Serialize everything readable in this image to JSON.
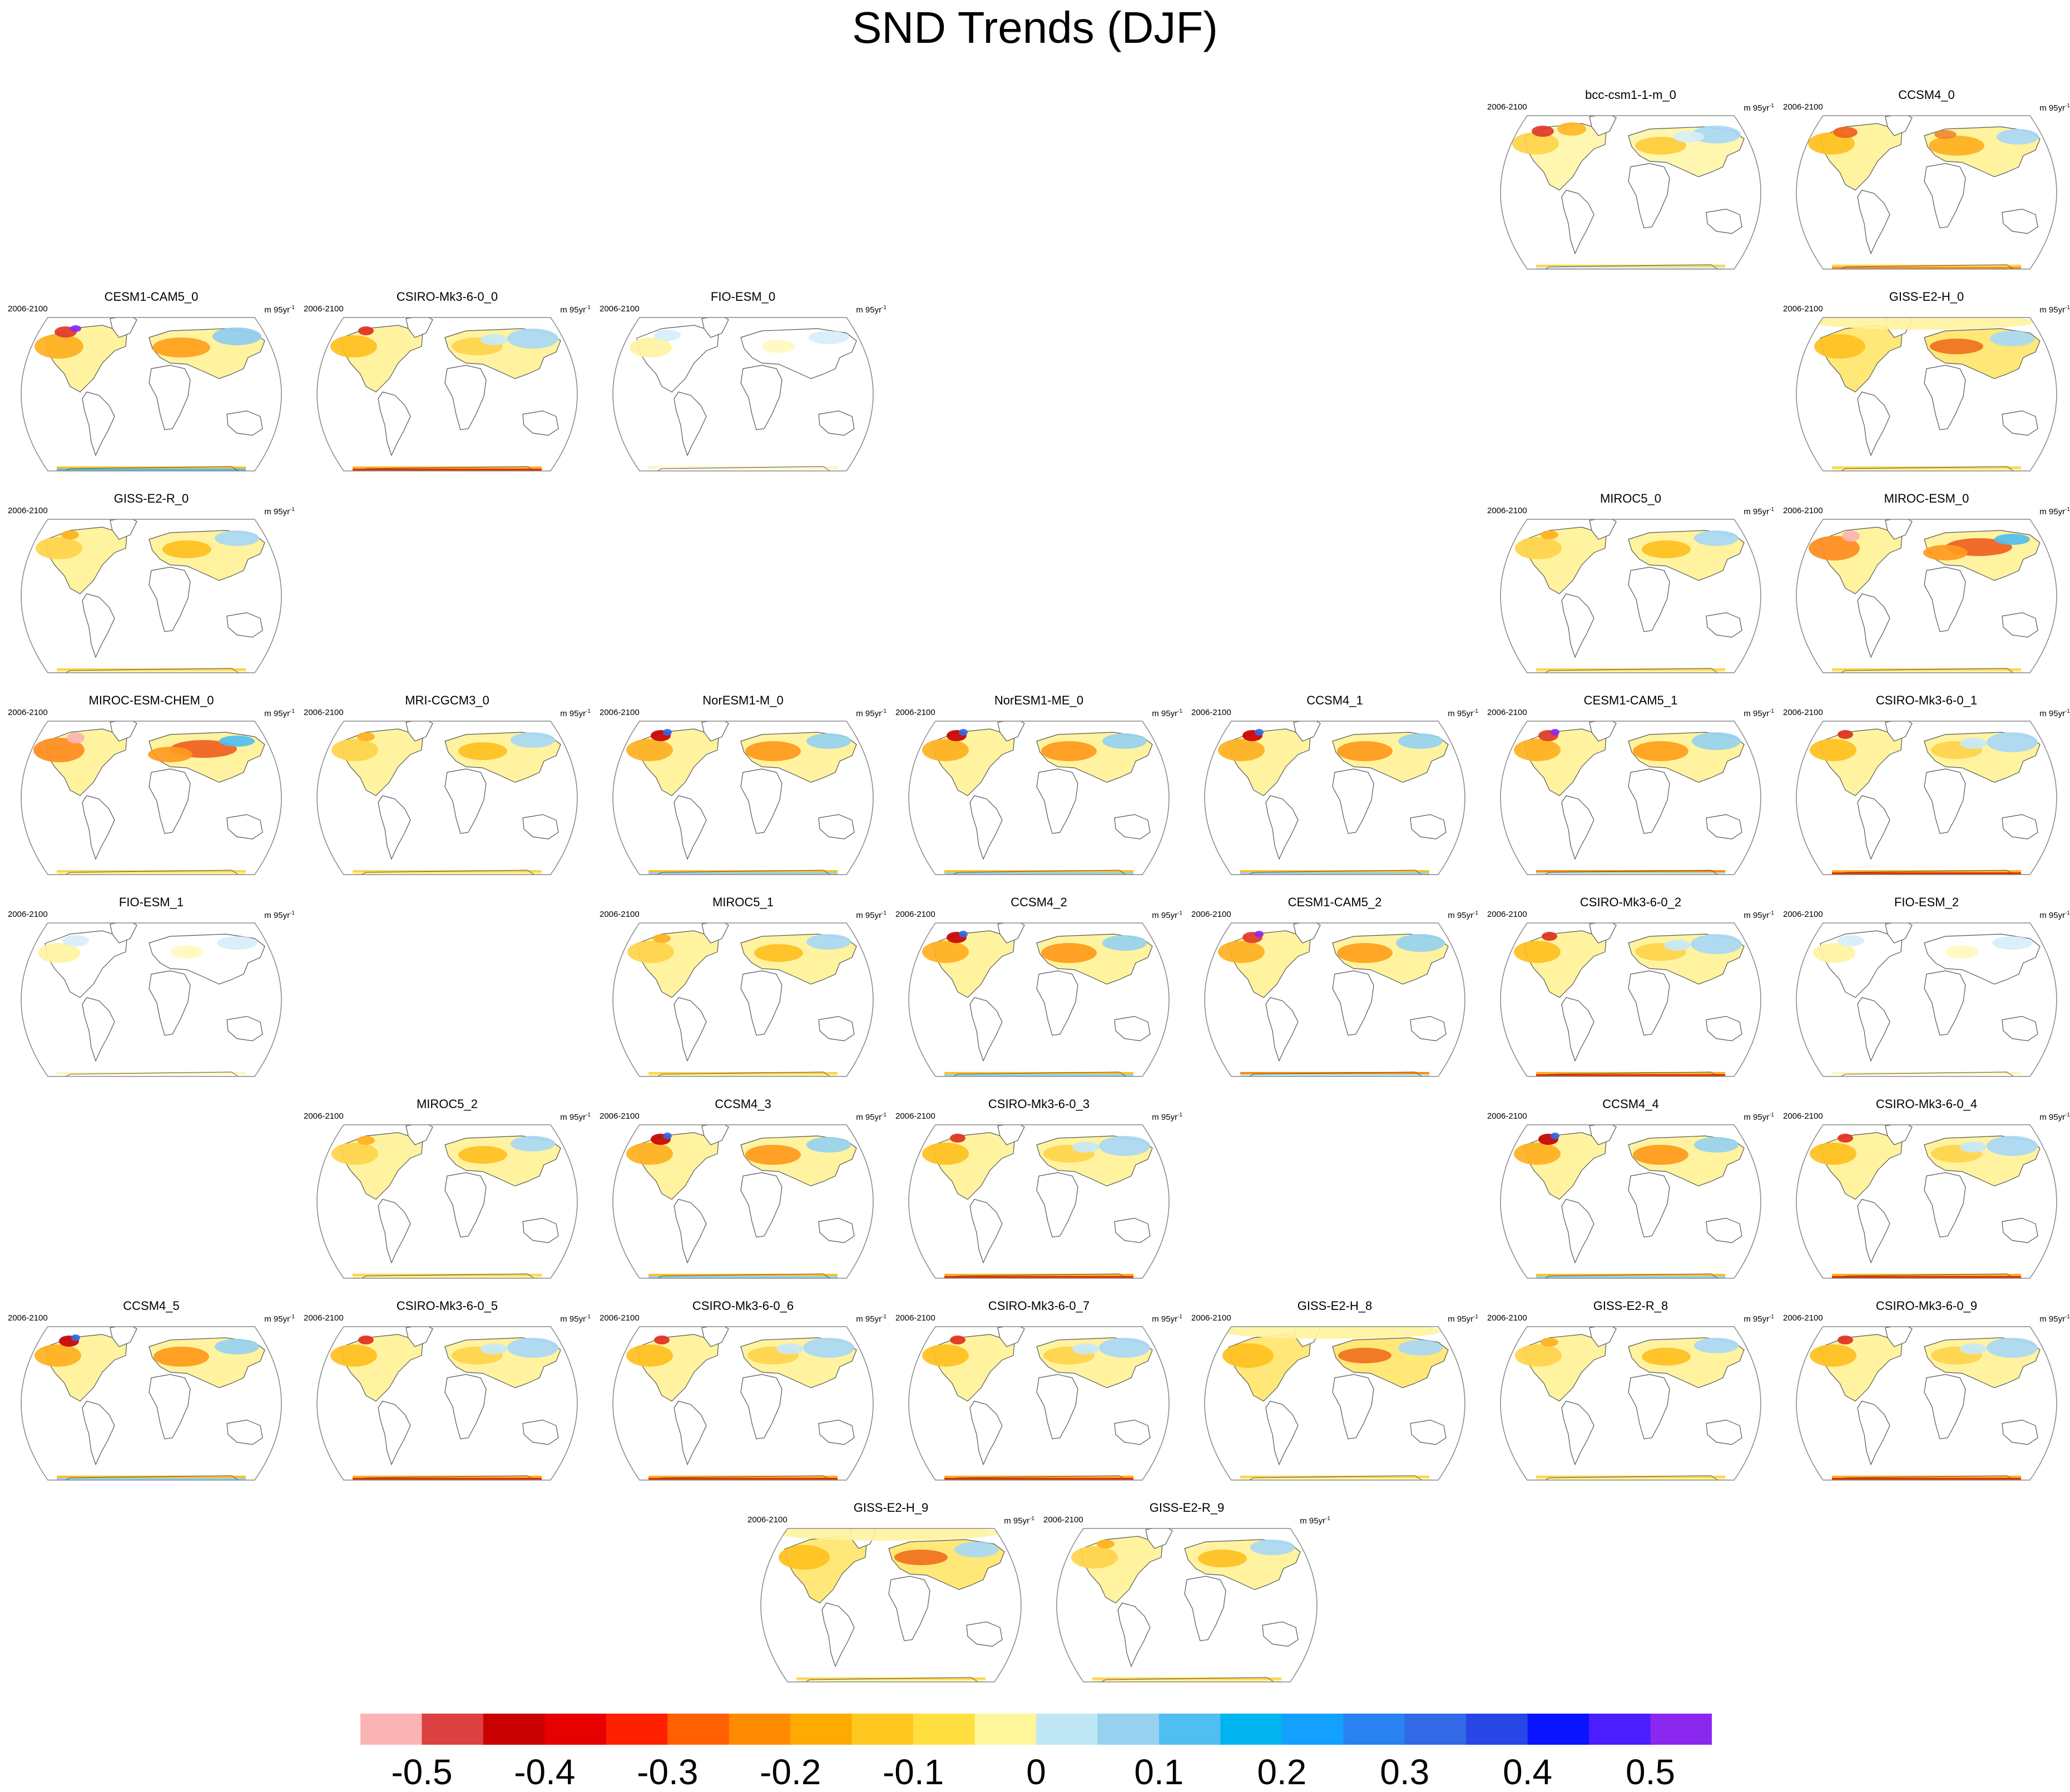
{
  "title": "SND Trends (DJF)",
  "panel_template": {
    "period": "2006-2100",
    "unit_base": "m 95yr",
    "unit_exponent": "-1"
  },
  "panels": [
    {
      "model": "bcc-csm1-1-m_0",
      "row": 0,
      "col": 5,
      "style": "ws"
    },
    {
      "model": "CCSM4_0",
      "row": 0,
      "col": 6,
      "style": "wn"
    },
    {
      "model": "CESM1-CAM5_0",
      "row": 1,
      "col": 0,
      "style": "ms"
    },
    {
      "model": "CSIRO-Mk3-6-0_0",
      "row": 1,
      "col": 1,
      "style": "ns"
    },
    {
      "model": "FIO-ESM_0",
      "row": 1,
      "col": 2,
      "style": "l"
    },
    {
      "model": "GISS-E2-H_0",
      "row": 1,
      "col": 6,
      "style": "g"
    },
    {
      "model": "GISS-E2-R_0",
      "row": 2,
      "col": 0,
      "style": "y"
    },
    {
      "model": "MIROC5_0",
      "row": 2,
      "col": 5,
      "style": "y"
    },
    {
      "model": "MIROC-ESM_0",
      "row": 2,
      "col": 6,
      "style": "s"
    },
    {
      "model": "MIROC-ESM-CHEM_0",
      "row": 3,
      "col": 0,
      "style": "s"
    },
    {
      "model": "MRI-CGCM3_0",
      "row": 3,
      "col": 1,
      "style": "y"
    },
    {
      "model": "NorESM1-M_0",
      "row": 3,
      "col": 2,
      "style": "wb"
    },
    {
      "model": "NorESM1-ME_0",
      "row": 3,
      "col": 3,
      "style": "wb"
    },
    {
      "model": "CCSM4_1",
      "row": 3,
      "col": 4,
      "style": "wb"
    },
    {
      "model": "CESM1-CAM5_1",
      "row": 3,
      "col": 5,
      "style": "mb"
    },
    {
      "model": "CSIRO-Mk3-6-0_1",
      "row": 3,
      "col": 6,
      "style": "ns"
    },
    {
      "model": "FIO-ESM_1",
      "row": 4,
      "col": 0,
      "style": "l"
    },
    {
      "model": "MIROC5_1",
      "row": 4,
      "col": 2,
      "style": "y"
    },
    {
      "model": "CCSM4_2",
      "row": 4,
      "col": 3,
      "style": "wb"
    },
    {
      "model": "CESM1-CAM5_2",
      "row": 4,
      "col": 4,
      "style": "mb"
    },
    {
      "model": "CSIRO-Mk3-6-0_2",
      "row": 4,
      "col": 5,
      "style": "ns"
    },
    {
      "model": "FIO-ESM_2",
      "row": 4,
      "col": 6,
      "style": "l"
    },
    {
      "model": "MIROC5_2",
      "row": 5,
      "col": 1,
      "style": "y"
    },
    {
      "model": "CCSM4_3",
      "row": 5,
      "col": 2,
      "style": "wb"
    },
    {
      "model": "CSIRO-Mk3-6-0_3",
      "row": 5,
      "col": 3,
      "style": "ns"
    },
    {
      "model": "CCSM4_4",
      "row": 5,
      "col": 5,
      "style": "wb"
    },
    {
      "model": "CSIRO-Mk3-6-0_4",
      "row": 5,
      "col": 6,
      "style": "ns"
    },
    {
      "model": "CCSM4_5",
      "row": 6,
      "col": 0,
      "style": "wb"
    },
    {
      "model": "CSIRO-Mk3-6-0_5",
      "row": 6,
      "col": 1,
      "style": "ns"
    },
    {
      "model": "CSIRO-Mk3-6-0_6",
      "row": 6,
      "col": 2,
      "style": "ns"
    },
    {
      "model": "CSIRO-Mk3-6-0_7",
      "row": 6,
      "col": 3,
      "style": "ns"
    },
    {
      "model": "GISS-E2-H_8",
      "row": 6,
      "col": 4,
      "style": "g"
    },
    {
      "model": "GISS-E2-R_8",
      "row": 6,
      "col": 5,
      "style": "y"
    },
    {
      "model": "CSIRO-Mk3-6-0_9",
      "row": 6,
      "col": 6,
      "style": "ns"
    },
    {
      "model": "GISS-E2-H_9",
      "row": 7,
      "col": 2.5,
      "style": "g"
    },
    {
      "model": "GISS-E2-R_9",
      "row": 7,
      "col": 3.5,
      "style": "y"
    }
  ],
  "colorbar": {
    "colors": [
      "#fbb4b4",
      "#dd4040",
      "#c80000",
      "#e60000",
      "#ff2000",
      "#ff6000",
      "#ff8c00",
      "#ffaa00",
      "#ffc820",
      "#ffe040",
      "#fff59a",
      "#bfe6f5",
      "#96d2ef",
      "#50bef0",
      "#00b4f0",
      "#14a0ff",
      "#2882f0",
      "#3269e6",
      "#2846e6",
      "#0a14ff",
      "#4b1eff",
      "#8a28f0"
    ],
    "tick_labels": [
      "-0.5",
      "-0.4",
      "-0.3",
      "-0.2",
      "-0.1",
      "0",
      "0.1",
      "0.2",
      "0.3",
      "0.4",
      "0.5"
    ]
  }
}
